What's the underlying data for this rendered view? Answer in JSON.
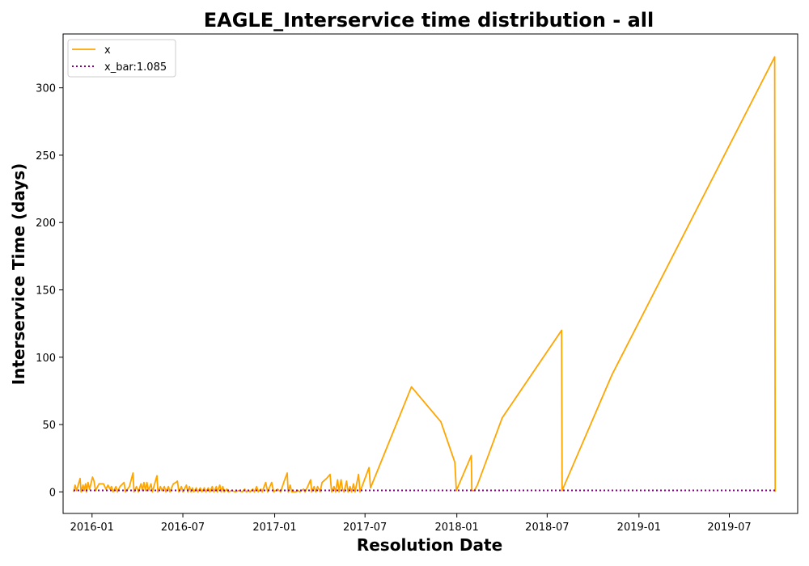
{
  "chart_data": {
    "type": "line",
    "title": "EAGLE_Interservice time distribution - all",
    "xlabel": "Resolution Date",
    "ylabel": "Interservice Time (days)",
    "x_axis_type": "date",
    "xlim": [
      "2015-11-04",
      "2019-11-15"
    ],
    "ylim": [
      -16,
      340
    ],
    "x_ticks": [
      "2016-01",
      "2016-07",
      "2017-01",
      "2017-07",
      "2018-01",
      "2018-07",
      "2019-01",
      "2019-07"
    ],
    "x_tick_dates": [
      "2016-01-01",
      "2016-07-01",
      "2017-01-01",
      "2017-07-01",
      "2018-01-01",
      "2018-07-01",
      "2019-01-01",
      "2019-07-01"
    ],
    "y_ticks": [
      0,
      50,
      100,
      150,
      200,
      250,
      300
    ],
    "grid": false,
    "legend_position": "top-left",
    "series": [
      {
        "name": "x",
        "color": "#ffa500",
        "style": "solid",
        "points": [
          [
            "2015-11-25",
            0
          ],
          [
            "2015-11-28",
            5
          ],
          [
            "2015-12-01",
            1
          ],
          [
            "2015-12-08",
            10
          ],
          [
            "2015-12-10",
            0
          ],
          [
            "2015-12-14",
            5
          ],
          [
            "2015-12-16",
            1
          ],
          [
            "2015-12-19",
            6
          ],
          [
            "2015-12-21",
            0
          ],
          [
            "2015-12-24",
            7
          ],
          [
            "2015-12-27",
            2
          ],
          [
            "2016-01-02",
            11
          ],
          [
            "2016-01-05",
            8
          ],
          [
            "2016-01-08",
            1
          ],
          [
            "2016-01-15",
            6
          ],
          [
            "2016-01-24",
            6
          ],
          [
            "2016-01-29",
            2
          ],
          [
            "2016-02-02",
            5
          ],
          [
            "2016-02-06",
            2
          ],
          [
            "2016-02-09",
            4
          ],
          [
            "2016-02-12",
            0
          ],
          [
            "2016-02-18",
            4
          ],
          [
            "2016-02-21",
            0
          ],
          [
            "2016-02-26",
            4
          ],
          [
            "2016-03-05",
            7
          ],
          [
            "2016-03-08",
            0
          ],
          [
            "2016-03-16",
            4
          ],
          [
            "2016-03-23",
            14
          ],
          [
            "2016-03-25",
            0
          ],
          [
            "2016-03-30",
            4
          ],
          [
            "2016-04-03",
            0
          ],
          [
            "2016-04-08",
            6
          ],
          [
            "2016-04-11",
            1
          ],
          [
            "2016-04-14",
            7
          ],
          [
            "2016-04-17",
            1
          ],
          [
            "2016-04-20",
            7
          ],
          [
            "2016-04-23",
            1
          ],
          [
            "2016-04-28",
            6
          ],
          [
            "2016-05-01",
            0
          ],
          [
            "2016-05-10",
            12
          ],
          [
            "2016-05-12",
            0
          ],
          [
            "2016-05-17",
            4
          ],
          [
            "2016-05-20",
            1
          ],
          [
            "2016-05-25",
            4
          ],
          [
            "2016-05-28",
            0
          ],
          [
            "2016-06-02",
            4
          ],
          [
            "2016-06-05",
            0
          ],
          [
            "2016-06-12",
            6
          ],
          [
            "2016-06-17",
            7
          ],
          [
            "2016-06-20",
            8
          ],
          [
            "2016-06-23",
            0
          ],
          [
            "2016-06-28",
            4
          ],
          [
            "2016-07-01",
            0
          ],
          [
            "2016-07-08",
            5
          ],
          [
            "2016-07-11",
            0
          ],
          [
            "2016-07-14",
            4
          ],
          [
            "2016-07-17",
            0
          ],
          [
            "2016-07-20",
            3
          ],
          [
            "2016-07-23",
            0
          ],
          [
            "2016-07-28",
            3
          ],
          [
            "2016-07-31",
            0
          ],
          [
            "2016-08-05",
            3
          ],
          [
            "2016-08-08",
            0
          ],
          [
            "2016-08-13",
            3
          ],
          [
            "2016-08-16",
            0
          ],
          [
            "2016-08-21",
            3
          ],
          [
            "2016-08-24",
            0
          ],
          [
            "2016-08-29",
            4
          ],
          [
            "2016-09-01",
            0
          ],
          [
            "2016-09-06",
            4
          ],
          [
            "2016-09-08",
            0
          ],
          [
            "2016-09-13",
            5
          ],
          [
            "2016-09-16",
            0
          ],
          [
            "2016-09-19",
            4
          ],
          [
            "2016-09-22",
            0
          ],
          [
            "2016-09-27",
            2
          ],
          [
            "2016-09-30",
            0
          ],
          [
            "2016-10-07",
            1
          ],
          [
            "2016-10-14",
            0
          ],
          [
            "2016-10-21",
            1
          ],
          [
            "2016-10-28",
            0
          ],
          [
            "2016-11-02",
            2
          ],
          [
            "2016-11-05",
            0
          ],
          [
            "2016-11-10",
            1
          ],
          [
            "2016-11-13",
            0
          ],
          [
            "2016-11-18",
            2
          ],
          [
            "2016-11-21",
            0
          ],
          [
            "2016-11-26",
            4
          ],
          [
            "2016-11-29",
            0
          ],
          [
            "2016-12-04",
            2
          ],
          [
            "2016-12-07",
            0
          ],
          [
            "2016-12-14",
            7
          ],
          [
            "2016-12-18",
            0
          ],
          [
            "2016-12-26",
            7
          ],
          [
            "2016-12-30",
            0
          ],
          [
            "2017-01-07",
            2
          ],
          [
            "2017-01-13",
            0
          ],
          [
            "2017-01-20",
            8
          ],
          [
            "2017-01-26",
            14
          ],
          [
            "2017-01-28",
            0
          ],
          [
            "2017-02-01",
            5
          ],
          [
            "2017-02-04",
            0
          ],
          [
            "2017-02-12",
            0
          ],
          [
            "2017-02-17",
            1
          ],
          [
            "2017-02-20",
            0
          ],
          [
            "2017-02-28",
            2
          ],
          [
            "2017-03-03",
            0
          ],
          [
            "2017-03-08",
            4
          ],
          [
            "2017-03-14",
            9
          ],
          [
            "2017-03-16",
            0
          ],
          [
            "2017-03-21",
            4
          ],
          [
            "2017-03-24",
            0
          ],
          [
            "2017-03-28",
            4
          ],
          [
            "2017-04-02",
            0
          ],
          [
            "2017-04-06",
            7
          ],
          [
            "2017-04-15",
            10
          ],
          [
            "2017-04-22",
            13
          ],
          [
            "2017-04-25",
            0
          ],
          [
            "2017-04-30",
            4
          ],
          [
            "2017-05-03",
            0
          ],
          [
            "2017-05-07",
            9
          ],
          [
            "2017-05-10",
            0
          ],
          [
            "2017-05-14",
            9
          ],
          [
            "2017-05-17",
            2
          ],
          [
            "2017-05-20",
            0
          ],
          [
            "2017-05-25",
            8
          ],
          [
            "2017-05-28",
            0
          ],
          [
            "2017-06-01",
            4
          ],
          [
            "2017-06-04",
            0
          ],
          [
            "2017-06-08",
            6
          ],
          [
            "2017-06-11",
            0
          ],
          [
            "2017-06-18",
            13
          ],
          [
            "2017-06-21",
            0
          ],
          [
            "2017-07-02",
            11
          ],
          [
            "2017-07-09",
            18
          ],
          [
            "2017-07-12",
            3
          ],
          [
            "2017-10-02",
            78
          ],
          [
            "2017-11-30",
            52
          ],
          [
            "2017-12-28",
            22
          ],
          [
            "2017-12-31",
            1
          ],
          [
            "2018-01-30",
            27
          ],
          [
            "2018-01-31",
            1
          ],
          [
            "2018-02-05",
            1
          ],
          [
            "2018-02-11",
            5
          ],
          [
            "2018-04-02",
            55
          ],
          [
            "2018-07-30",
            120
          ],
          [
            "2018-07-31",
            1
          ],
          [
            "2018-11-08",
            87
          ],
          [
            "2019-09-30",
            323
          ],
          [
            "2019-10-01",
            0
          ]
        ]
      },
      {
        "name": "x_bar:1.085",
        "color": "#800080",
        "style": "dotted",
        "points": [
          [
            "2015-11-25",
            1.085
          ],
          [
            "2019-10-01",
            1.085
          ]
        ]
      }
    ]
  }
}
